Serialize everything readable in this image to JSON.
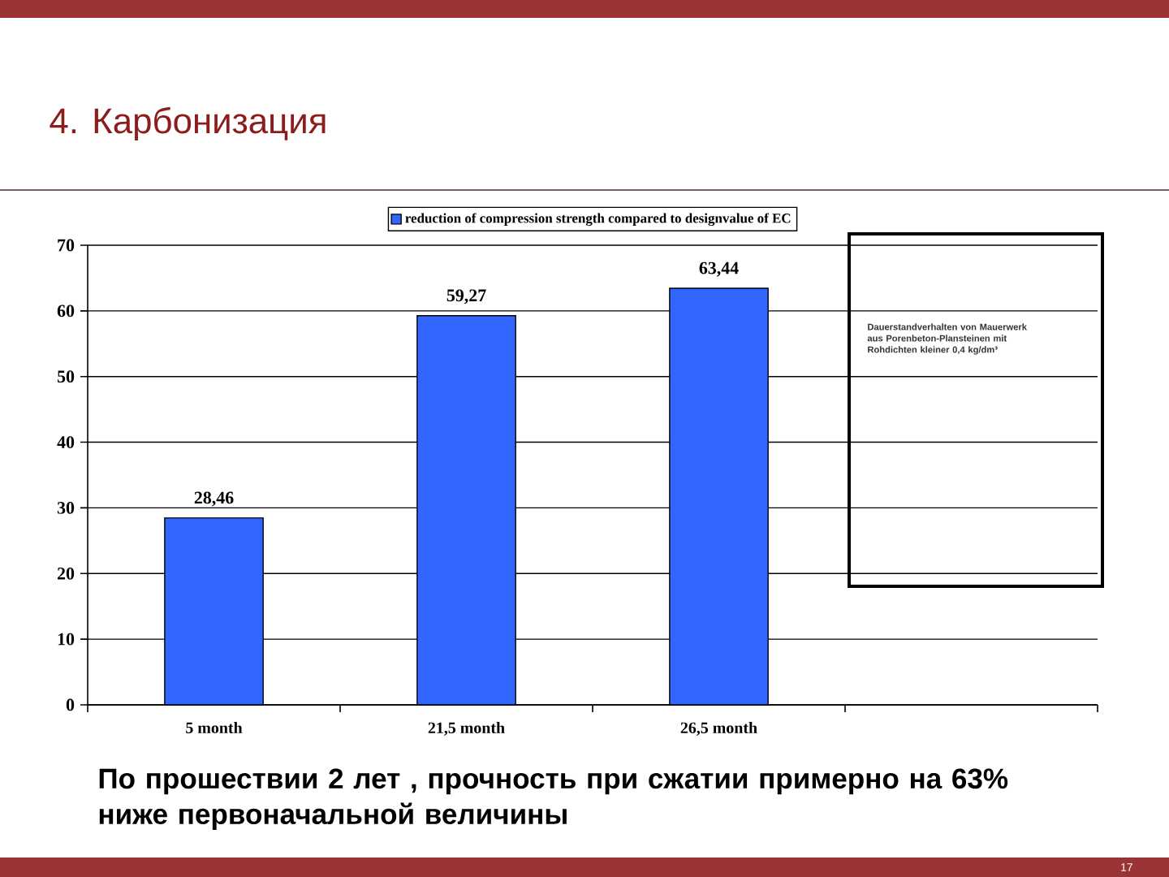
{
  "chart_data": {
    "type": "bar",
    "title": "4. Карбонизация",
    "categories": [
      "5 month",
      "21,5 month",
      "26,5 month",
      null
    ],
    "series": [
      {
        "name": "reduction of compression strength compared to designvalue of EC",
        "color": "#3366ff",
        "values": [
          28.46,
          59.27,
          63.44,
          null
        ],
        "value_labels": [
          "28,46",
          "59,27",
          "63,44",
          null
        ]
      }
    ],
    "ylim": [
      0,
      70
    ],
    "yticks": [
      0,
      10,
      20,
      30,
      40,
      50,
      60,
      70
    ],
    "grid": "y",
    "legend": "top",
    "annotations": [
      "По прошествии 2 лет , прочность при сжатии примерно на 63% ниже первоначальной величины",
      "Dauerstandverhalten von Mauerwerk aus Porenbeton-Plansteinen mit Rohdichten kleiner 0,4 kg/dm³",
      "17"
    ]
  }
}
